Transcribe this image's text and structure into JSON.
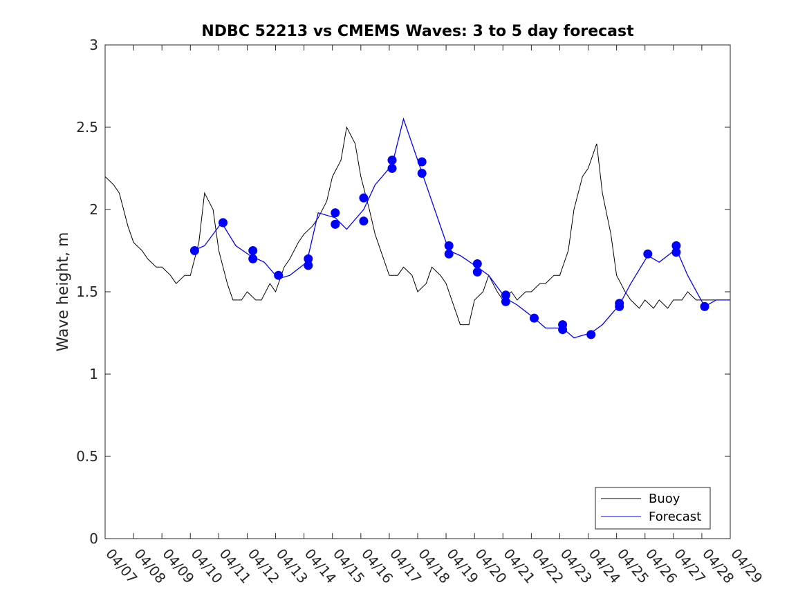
{
  "chart_data": {
    "type": "line",
    "title": "NDBC 52213 vs CMEMS Waves: 3 to 5 day forecast",
    "xlabel": "",
    "ylabel": "Wave height, m",
    "ylim": [
      0,
      3
    ],
    "yticks": [
      "0",
      "0.5",
      "1",
      "1.5",
      "2",
      "2.5",
      "3"
    ],
    "xlim": [
      "04/07",
      "04/29"
    ],
    "xticks": [
      "04/07",
      "04/08",
      "04/09",
      "04/10",
      "04/11",
      "04/12",
      "04/13",
      "04/14",
      "04/15",
      "04/16",
      "04/17",
      "04/18",
      "04/19",
      "04/20",
      "04/21",
      "04/22",
      "04/23",
      "04/24",
      "04/25",
      "04/26",
      "04/27",
      "04/28",
      "04/29"
    ],
    "legend": {
      "position": "bottom-right",
      "entries": [
        "Buoy",
        "Forecast"
      ]
    },
    "colors": {
      "buoy": "#000000",
      "forecast": "#0000ff"
    },
    "series": [
      {
        "name": "Buoy",
        "x_days": [
          0.0,
          0.3,
          0.5,
          0.8,
          1.0,
          1.3,
          1.5,
          1.8,
          2.0,
          2.3,
          2.5,
          2.8,
          3.0,
          3.3,
          3.5,
          3.8,
          4.0,
          4.3,
          4.5,
          4.8,
          5.0,
          5.3,
          5.5,
          5.8,
          6.0,
          6.3,
          6.5,
          6.8,
          7.0,
          7.3,
          7.5,
          7.8,
          8.0,
          8.3,
          8.5,
          8.8,
          9.0,
          9.3,
          9.5,
          9.8,
          10.0,
          10.3,
          10.5,
          10.8,
          11.0,
          11.3,
          11.5,
          11.8,
          12.0,
          12.3,
          12.5,
          12.8,
          13.0,
          13.3,
          13.5,
          13.8,
          14.0,
          14.3,
          14.5,
          14.8,
          15.0,
          15.3,
          15.5,
          15.8,
          16.0,
          16.3,
          16.5,
          16.8,
          17.0,
          17.3,
          17.5,
          17.8,
          18.0,
          18.3,
          18.5,
          18.8,
          19.0,
          19.3,
          19.5,
          19.8,
          20.0,
          20.3,
          20.5,
          20.8,
          21.0,
          21.3,
          21.5,
          21.8,
          22.0
        ],
        "values": [
          2.2,
          2.15,
          2.1,
          1.9,
          1.8,
          1.75,
          1.7,
          1.65,
          1.65,
          1.6,
          1.55,
          1.6,
          1.6,
          1.8,
          2.1,
          2.0,
          1.75,
          1.55,
          1.45,
          1.45,
          1.5,
          1.45,
          1.45,
          1.55,
          1.5,
          1.65,
          1.7,
          1.8,
          1.85,
          1.9,
          1.95,
          2.05,
          2.2,
          2.3,
          2.5,
          2.4,
          2.2,
          2.0,
          1.85,
          1.7,
          1.6,
          1.6,
          1.65,
          1.6,
          1.5,
          1.55,
          1.65,
          1.6,
          1.55,
          1.4,
          1.3,
          1.3,
          1.45,
          1.5,
          1.6,
          1.5,
          1.45,
          1.5,
          1.45,
          1.5,
          1.5,
          1.55,
          1.55,
          1.6,
          1.6,
          1.75,
          2.0,
          2.2,
          2.25,
          2.4,
          2.1,
          1.85,
          1.6,
          1.5,
          1.45,
          1.4,
          1.45,
          1.4,
          1.45,
          1.4,
          1.45,
          1.45,
          1.5,
          1.45,
          1.45,
          1.45,
          1.45,
          1.45,
          1.45
        ]
      },
      {
        "name": "Forecast",
        "x_days": [
          3.1,
          3.5,
          4.1,
          4.6,
          5.1,
          5.6,
          6.1,
          6.5,
          7.1,
          7.5,
          8.1,
          8.5,
          9.1,
          9.5,
          10.1,
          10.5,
          11.1,
          11.5,
          12.1,
          12.5,
          13.1,
          13.5,
          14.1,
          14.5,
          15.1,
          15.5,
          16.1,
          16.5,
          17.1,
          17.5,
          18.1,
          18.5,
          19.1,
          19.5,
          20.1,
          20.5,
          21.1,
          21.5,
          22.0
        ],
        "values": [
          1.75,
          1.78,
          1.92,
          1.78,
          1.72,
          1.68,
          1.58,
          1.6,
          1.68,
          1.98,
          1.95,
          1.88,
          2.0,
          2.15,
          2.27,
          2.55,
          2.25,
          2.05,
          1.75,
          1.72,
          1.65,
          1.6,
          1.46,
          1.42,
          1.34,
          1.28,
          1.28,
          1.22,
          1.25,
          1.3,
          1.42,
          1.55,
          1.72,
          1.68,
          1.76,
          1.6,
          1.41,
          1.45,
          1.45
        ]
      }
    ],
    "markers": {
      "series": "Forecast",
      "x_days": [
        3.15,
        4.15,
        5.2,
        5.2,
        6.1,
        7.15,
        7.15,
        8.1,
        8.1,
        9.1,
        9.1,
        10.1,
        10.1,
        11.15,
        11.15,
        12.1,
        12.1,
        13.1,
        13.1,
        14.1,
        14.1,
        15.1,
        16.1,
        16.1,
        17.1,
        18.1,
        18.1,
        19.1,
        20.1,
        20.1,
        21.1
      ],
      "values": [
        1.75,
        1.92,
        1.75,
        1.7,
        1.6,
        1.7,
        1.66,
        1.98,
        1.91,
        2.07,
        1.93,
        2.3,
        2.25,
        2.29,
        2.22,
        1.78,
        1.73,
        1.67,
        1.62,
        1.48,
        1.44,
        1.34,
        1.3,
        1.27,
        1.24,
        1.43,
        1.41,
        1.73,
        1.78,
        1.74,
        1.41
      ]
    }
  }
}
